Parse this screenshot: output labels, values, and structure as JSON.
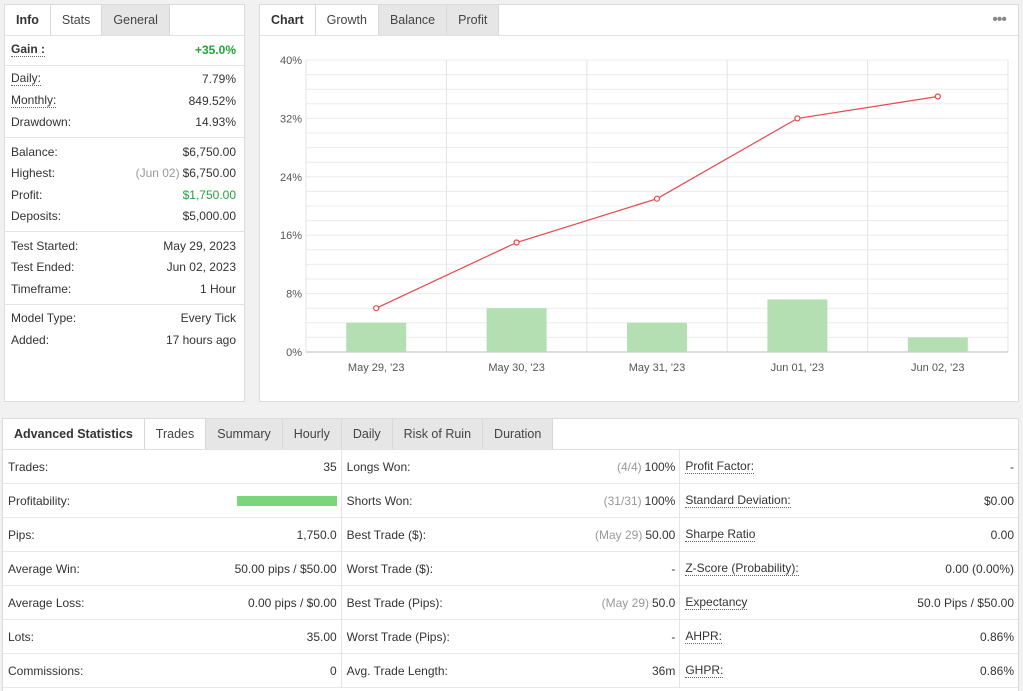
{
  "info_panel": {
    "tabs": [
      "Info",
      "Stats",
      "General"
    ],
    "groups": [
      [
        {
          "label": "Gain :",
          "value": "+35.0%",
          "bold": true,
          "green": true,
          "dotted": true
        }
      ],
      [
        {
          "label": "Daily:",
          "value": "7.79%",
          "dotted": true
        },
        {
          "label": "Monthly:",
          "value": "849.52%",
          "dotted": true
        },
        {
          "label": "Drawdown:",
          "value": "14.93%"
        }
      ],
      [
        {
          "label": "Balance:",
          "value": "$6,750.00"
        },
        {
          "label": "Highest:",
          "prefix": "(Jun 02)",
          "value": "$6,750.00"
        },
        {
          "label": "Profit:",
          "value": "$1,750.00",
          "green": true
        },
        {
          "label": "Deposits:",
          "value": "$5,000.00"
        }
      ],
      [
        {
          "label": "Test Started:",
          "value": "May 29, 2023"
        },
        {
          "label": "Test Ended:",
          "value": "Jun 02, 2023"
        },
        {
          "label": "Timeframe:",
          "value": "1 Hour"
        }
      ],
      [
        {
          "label": "Model Type:",
          "value": "Every Tick"
        },
        {
          "label": "Added:",
          "value": "17 hours ago"
        }
      ]
    ]
  },
  "chart_panel": {
    "title": "Chart",
    "tabs": [
      "Growth",
      "Balance",
      "Profit"
    ],
    "more_icon": "more-dots-icon"
  },
  "chart_data": {
    "type": "line",
    "categories": [
      "May 29, '23",
      "May 30, '23",
      "May 31, '23",
      "Jun 01, '23",
      "Jun 02, '23"
    ],
    "series": [
      {
        "type": "line",
        "color": "#e5484d",
        "values": [
          6,
          15,
          21,
          32,
          35
        ]
      },
      {
        "type": "bar",
        "color": "#b3dfb3",
        "values": [
          4,
          6,
          4,
          7.2,
          2
        ]
      }
    ],
    "y_ticks": [
      "0%",
      "8%",
      "16%",
      "24%",
      "32%",
      "40%"
    ],
    "ylim": [
      0,
      40
    ],
    "grid": true
  },
  "advanced": {
    "title": "Advanced Statistics",
    "tabs": [
      "Trades",
      "Summary",
      "Hourly",
      "Daily",
      "Risk of Ruin",
      "Duration"
    ],
    "columns": [
      [
        {
          "label": "Trades:",
          "value": "35"
        },
        {
          "label": "Profitability:",
          "bar": 1.0
        },
        {
          "label": "Pips:",
          "value": "1,750.0"
        },
        {
          "label": "Average Win:",
          "value": "50.00 pips / $50.00"
        },
        {
          "label": "Average Loss:",
          "value": "0.00 pips / $0.00"
        },
        {
          "label": "Lots:",
          "value": "35.00"
        },
        {
          "label": "Commissions:",
          "value": "0"
        }
      ],
      [
        {
          "label": "Longs Won:",
          "prefix": "(4/4)",
          "value": "100%"
        },
        {
          "label": "Shorts Won:",
          "prefix": "(31/31)",
          "value": "100%"
        },
        {
          "label": "Best Trade ($):",
          "prefix": "(May 29)",
          "value": "50.00"
        },
        {
          "label": "Worst Trade ($):",
          "value": "-"
        },
        {
          "label": "Best Trade (Pips):",
          "prefix": "(May 29)",
          "value": "50.0"
        },
        {
          "label": "Worst Trade (Pips):",
          "value": "-"
        },
        {
          "label": "Avg. Trade Length:",
          "value": "36m"
        }
      ],
      [
        {
          "label": "Profit Factor:",
          "value": "-",
          "dotted": true
        },
        {
          "label": "Standard Deviation:",
          "value": "$0.00",
          "dotted": true
        },
        {
          "label": "Sharpe Ratio",
          "value": "0.00",
          "dotted": true
        },
        {
          "label": "Z-Score (Probability):",
          "value": "0.00 (0.00%)",
          "dotted": true
        },
        {
          "label": "Expectancy",
          "value": "50.0 Pips / $50.00",
          "dotted": true
        },
        {
          "label": "AHPR:",
          "value": "0.86%",
          "dotted": true
        },
        {
          "label": "GHPR:",
          "value": "0.86%",
          "dotted": true
        }
      ]
    ]
  }
}
